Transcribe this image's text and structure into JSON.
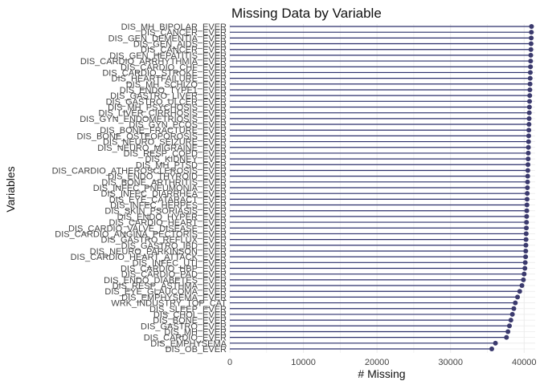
{
  "chart_data": {
    "type": "lollipop",
    "title": "Missing Data by Variable",
    "xlabel": "# Missing",
    "ylabel": "Variables",
    "xlim": [
      0,
      41500
    ],
    "xticks": [
      0,
      10000,
      20000,
      30000,
      40000
    ],
    "grid": true,
    "legend": "none",
    "colors": {
      "segment": "#2b2f6b",
      "point": "#3b3a6e",
      "grid": "#ebebeb"
    },
    "categories": [
      "DIS_MH_BIPOLAR_EVER",
      "DIS_CANCER_EVER",
      "DIS_GEN_DEMENTIA_EVER",
      "DIS_GEN_AIDS_EVER",
      "DIS_CANCER_EVER",
      "DIS_GEN_HEPATITIS_EVER",
      "DIS_CARDIO_ARRHYTHMIA_EVER",
      "DIS_CARDIO_CHF_EVER",
      "DIS_CARDIO_STROKE_EVER",
      "DIS_HEARTFAILURE_EVER",
      "DIS_MH_SCHIZO_EVER",
      "DIS_ENDO_TYPE1_EVER",
      "DIS_GASTRO_LIVER_EVER",
      "DIS_GASTRO_ULCER_EVER",
      "DIS_MH_PSYCHOSIS_EVER",
      "DIS_LIVER_CIRRHOSIS_EVER",
      "DIS_GYN_ENDOMETRIOSIS_EVER",
      "DIS_GYN_PCOS_EVER",
      "DIS_BONE_FRACTURE_EVER",
      "DIS_BONE_OSTEOPOROSIS_EVER",
      "DIS_NEURO_SEIZURE_EVER",
      "DIS_NEURO_MIGRAINE_EVER",
      "DIS_RESP_COPD_EVER",
      "DIS_KIDNEY_EVER",
      "DIS_MH_PTSD_EVER",
      "DIS_CARDIO_ATHEROSCLEROSIS_EVER",
      "DIS_ENDO_THYROID_EVER",
      "DIS_BONE_ARTHRITIS_EVER",
      "DIS_INFEC_PNEUMONIA_EVER",
      "DIS_INFEC_DIARRHEA_EVER",
      "DIS_EYE_CATARACT_EVER",
      "DIS_INFEC_HERPES_EVER",
      "DIS_SKIN_PSORIASIS_EVER",
      "DIS_ENDO_HYPER_EVER",
      "DIS_CARDIO_HEART_EVER",
      "DIS_CARDIO_VALVE_DISEASE_EVER",
      "DIS_CARDIO_ANGINA_PECTORIS_EVER",
      "DIS_GASTRO_REFLUX_EVER",
      "DIS_GASTRO_IBD_EVER",
      "DIS_NEURO_PARKINSON_EVER",
      "DIS_CARDIO_HEART_ATTACK_EVER",
      "DIS_INFEC_UTI_EVER",
      "DIS_CARDIO_HBP_EVER",
      "DIS_CARDIO_PAD_EVER",
      "DIS_ENDO_DIABETES_EVER",
      "DIS_RESP_ASTHMA_EVER",
      "DIS_EYE_GLAUCOMA_EVER",
      "DIS_EMPHYSEMA_EVER",
      "WRK_INDUSTRY_TOP_CAT",
      "DIS_SLEEP_EVER",
      "DIS_CHOL_EVER",
      "DIS_BONE_EVER",
      "DIS_GASTRO_EVER",
      "DIS_MH_EVER",
      "DIS_CARDIO_EVER",
      "DIS_EMPHYSEMA",
      "DIS_OB_EVER"
    ],
    "values": [
      41000,
      40980,
      40960,
      40940,
      40920,
      40900,
      40880,
      40860,
      40840,
      40820,
      40800,
      40780,
      40760,
      40740,
      40720,
      40700,
      40680,
      40660,
      40640,
      40620,
      40600,
      40580,
      40560,
      40540,
      40520,
      40500,
      40480,
      40460,
      40440,
      40420,
      40400,
      40380,
      40360,
      40340,
      40320,
      40300,
      40280,
      40260,
      40240,
      40220,
      40200,
      40150,
      40100,
      40000,
      39900,
      39700,
      39400,
      39100,
      38800,
      38600,
      38400,
      38200,
      38000,
      37800,
      37600,
      36100,
      35600
    ]
  }
}
